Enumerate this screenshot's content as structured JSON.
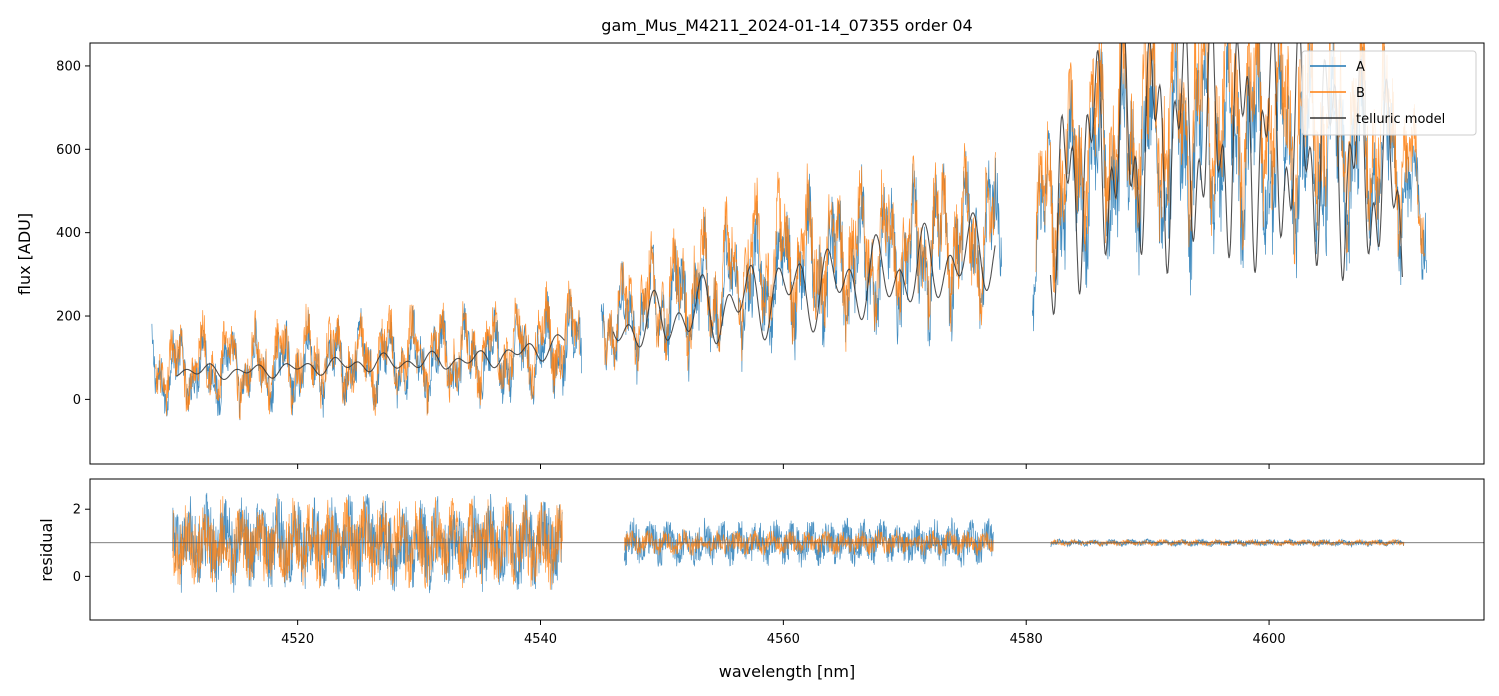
{
  "chart_data": [
    {
      "type": "line",
      "panel": "top",
      "title": "gam_Mus_M4211_2024-01-14_07355  order 04",
      "xlabel": "",
      "ylabel": "flux [ADU]",
      "xlim": [
        4502.9,
        4617.7
      ],
      "ylim": [
        -155,
        855
      ],
      "yticks": [
        0,
        200,
        400,
        600,
        800
      ],
      "ytick_labels": [
        "0",
        "200",
        "400",
        "600",
        "800"
      ],
      "legend_position": "top-right",
      "legend": [
        "A",
        "B",
        "telluric model"
      ],
      "series": [
        {
          "name": "A",
          "color": "#1f77b4",
          "segments": [
            {
              "x_start": 4508.0,
              "x_end": 4543.4,
              "x": [
                4508,
                4512,
                4516,
                4520,
                4524,
                4528,
                4532,
                4536,
                4540,
                4543.4
              ],
              "y": [
                60,
                75,
                65,
                80,
                85,
                90,
                95,
                100,
                110,
                130
              ],
              "amplitude": [
                130,
                140,
                130,
                140,
                140,
                145,
                145,
                145,
                155,
                160
              ]
            },
            {
              "x_start": 4545.0,
              "x_end": 4578.0,
              "x": [
                4545,
                4550,
                4555,
                4560,
                4565,
                4570,
                4575,
                4578
              ],
              "y": [
                170,
                220,
                260,
                300,
                320,
                340,
                380,
                400
              ],
              "amplitude": [
                150,
                190,
                220,
                240,
                250,
                255,
                265,
                260
              ]
            },
            {
              "x_start": 4580.5,
              "x_end": 4613.0,
              "x": [
                4580.5,
                4585,
                4590,
                4595,
                4600,
                4605,
                4610,
                4613
              ],
              "y": [
                380,
                560,
                600,
                610,
                600,
                590,
                580,
                400
              ],
              "amplitude": [
                260,
                340,
                360,
                370,
                360,
                350,
                300,
                200
              ]
            }
          ]
        },
        {
          "name": "B",
          "color": "#ff7f0e",
          "segments": [
            {
              "x_start": 4508.3,
              "x_end": 4543.2,
              "x": [
                4508.3,
                4512,
                4516,
                4520,
                4524,
                4528,
                4532,
                4536,
                4540,
                4543.2
              ],
              "y": [
                70,
                85,
                80,
                95,
                100,
                105,
                110,
                115,
                135,
                150
              ],
              "amplitude": [
                140,
                150,
                140,
                150,
                150,
                150,
                150,
                150,
                160,
                165
              ]
            },
            {
              "x_start": 4545.2,
              "x_end": 4577.5,
              "x": [
                4545.2,
                4550,
                4555,
                4560,
                4565,
                4570,
                4575,
                4577.5
              ],
              "y": [
                180,
                240,
                300,
                340,
                360,
                370,
                390,
                410
              ],
              "amplitude": [
                160,
                200,
                230,
                250,
                255,
                255,
                260,
                255
              ]
            },
            {
              "x_start": 4580.8,
              "x_end": 4612.8,
              "x": [
                4580.8,
                4585,
                4590,
                4595,
                4600,
                4605,
                4610,
                4612.8
              ],
              "y": [
                420,
                620,
                680,
                700,
                690,
                680,
                640,
                450
              ],
              "amplitude": [
                270,
                340,
                370,
                380,
                370,
                360,
                310,
                210
              ]
            }
          ]
        },
        {
          "name": "telluric model",
          "color": "#333333",
          "segments": [
            {
              "x_start": 4510.0,
              "x_end": 4542.0,
              "x": [
                4510,
                4515,
                4520,
                4525,
                4530,
                4535,
                4540,
                4542
              ],
              "y": [
                70,
                65,
                75,
                85,
                90,
                95,
                120,
                140
              ],
              "amplitude": [
                20,
                20,
                20,
                25,
                25,
                25,
                30,
                30
              ]
            },
            {
              "x_start": 4546.0,
              "x_end": 4577.5,
              "x": [
                4546,
                4550,
                4555,
                4560,
                4565,
                4570,
                4575,
                4577.5
              ],
              "y": [
                160,
                190,
                220,
                260,
                280,
                300,
                340,
                370
              ],
              "amplitude": [
                60,
                80,
                100,
                110,
                110,
                110,
                110,
                110
              ]
            },
            {
              "x_start": 4582.0,
              "x_end": 4611.0,
              "x": [
                4582,
                4585,
                4590,
                4595,
                4600,
                4605,
                4611
              ],
              "y": [
                400,
                580,
                620,
                630,
                620,
                600,
                480
              ],
              "amplitude": [
                260,
                300,
                320,
                330,
                320,
                310,
                260
              ]
            }
          ]
        }
      ]
    },
    {
      "type": "line",
      "panel": "bottom",
      "title": "",
      "xlabel": "wavelength [nm]",
      "ylabel": "residual",
      "xlim": [
        4502.9,
        4617.7
      ],
      "ylim": [
        -1.3,
        2.9
      ],
      "xticks": [
        4520,
        4540,
        4560,
        4580,
        4600
      ],
      "xtick_labels": [
        "4520",
        "4540",
        "4560",
        "4580",
        "4600"
      ],
      "yticks": [
        0,
        2
      ],
      "ytick_labels": [
        "0",
        "2"
      ],
      "reference_line": 1,
      "series": [
        {
          "name": "A",
          "color": "#1f77b4",
          "segments": [
            {
              "x_start": 4509.7,
              "x_end": 4541.8,
              "center": 1.0,
              "amplitude": 1.5
            },
            {
              "x_start": 4546.9,
              "x_end": 4577.3,
              "center": 1.0,
              "amplitude": 0.75
            },
            {
              "x_start": 4582.0,
              "x_end": 4611.1,
              "center": 1.0,
              "amplitude": 0.12
            }
          ]
        },
        {
          "name": "B",
          "color": "#ff7f0e",
          "segments": [
            {
              "x_start": 4509.7,
              "x_end": 4541.8,
              "center": 1.0,
              "amplitude": 1.4
            },
            {
              "x_start": 4546.9,
              "x_end": 4577.3,
              "center": 1.0,
              "amplitude": 0.4
            },
            {
              "x_start": 4582.0,
              "x_end": 4611.1,
              "center": 1.0,
              "amplitude": 0.1
            }
          ]
        }
      ]
    }
  ]
}
